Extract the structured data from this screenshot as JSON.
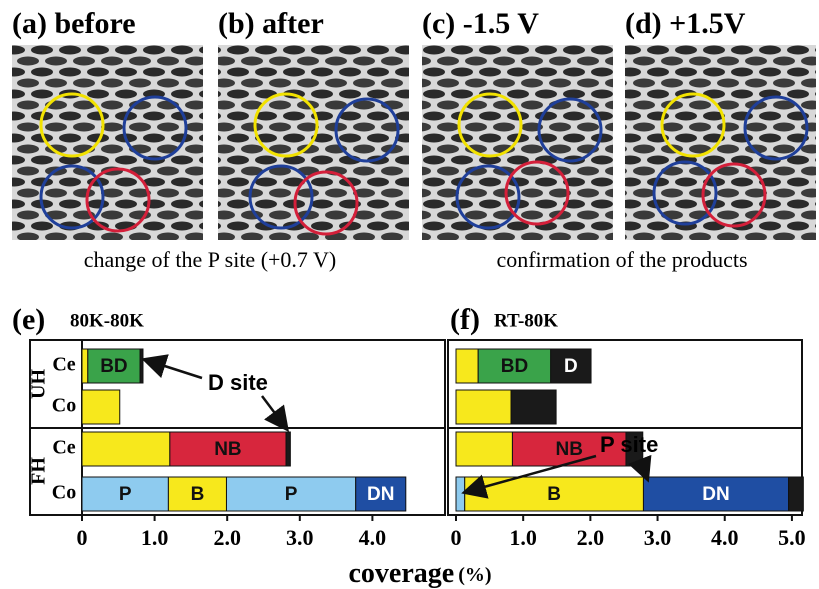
{
  "images": [
    {
      "title": "(a) before"
    },
    {
      "title": "(b) after"
    },
    {
      "title": "(c) -1.5 V"
    },
    {
      "title": "(d) +1.5V"
    }
  ],
  "captions": [
    "change of the P site (+0.7 V)",
    "confirmation of the products"
  ],
  "xlabel": {
    "text": "coverage",
    "unit": "(%)"
  },
  "chart_data": [
    {
      "type": "stacked_bar_h",
      "label": "(e)",
      "title": "80K-80K",
      "groups": [
        "UH",
        "FH"
      ],
      "categories": [
        "Ce",
        "Co",
        "Ce",
        "Co"
      ],
      "annotation": "D site",
      "xlim": [
        0,
        5.0
      ],
      "xticks": [
        0,
        {
          "value": 1,
          "label": "1.0"
        },
        {
          "value": 2,
          "label": "2.0"
        },
        {
          "value": 3,
          "label": "3.0"
        },
        {
          "value": 4,
          "label": "4.0"
        }
      ],
      "bars": [
        {
          "segments": [
            {
              "value": 0.08,
              "color": "#f7e81c"
            },
            {
              "value": 0.72,
              "color": "#3aa34a",
              "label": "BD"
            },
            {
              "value": 0.04,
              "color": "#1a1a1a"
            }
          ]
        },
        {
          "segments": [
            {
              "value": 0.52,
              "color": "#f7e81c"
            }
          ]
        },
        {
          "segments": [
            {
              "value": 1.21,
              "color": "#f7e81c"
            },
            {
              "value": 1.6,
              "color": "#d7263d",
              "label": "NB"
            },
            {
              "value": 0.06,
              "color": "#1a1a1a"
            }
          ]
        },
        {
          "segments": [
            {
              "value": 1.19,
              "color": "#8ecbef",
              "label": "P"
            },
            {
              "value": 0.8,
              "color": "#f7e81c",
              "label": "B"
            },
            {
              "value": 1.78,
              "color": "#8ecbef",
              "label": "P"
            },
            {
              "value": 0.69,
              "color": "#1f4ea3",
              "label": "DN"
            }
          ]
        }
      ]
    },
    {
      "type": "stacked_bar_h",
      "label": "(f)",
      "title": "RT-80K",
      "annotation": "P site",
      "xlim": [
        0,
        5.15
      ],
      "xticks": [
        0,
        {
          "value": 1,
          "label": "1.0"
        },
        {
          "value": 2,
          "label": "2.0"
        },
        {
          "value": 3,
          "label": "3.0"
        },
        {
          "value": 4,
          "label": "4.0"
        },
        {
          "value": 5,
          "label": "5.0"
        }
      ],
      "bars": [
        {
          "segments": [
            {
              "value": 0.33,
              "color": "#f7e81c"
            },
            {
              "value": 1.08,
              "color": "#3aa34a",
              "label": "BD"
            },
            {
              "value": 0.6,
              "color": "#1a1a1a",
              "label": "D"
            }
          ]
        },
        {
          "segments": [
            {
              "value": 0.82,
              "color": "#f7e81c"
            },
            {
              "value": 0.67,
              "color": "#1a1a1a"
            }
          ]
        },
        {
          "segments": [
            {
              "value": 0.84,
              "color": "#f7e81c"
            },
            {
              "value": 1.69,
              "color": "#d7263d",
              "label": "NB"
            },
            {
              "value": 0.25,
              "color": "#1a1a1a"
            }
          ]
        },
        {
          "segments": [
            {
              "value": 0.13,
              "color": "#8ecbef"
            },
            {
              "value": 2.66,
              "color": "#f7e81c",
              "label": "B"
            },
            {
              "value": 2.16,
              "color": "#1f4ea3",
              "label": "DN"
            },
            {
              "value": 0.22,
              "color": "#1a1a1a"
            }
          ]
        }
      ]
    }
  ]
}
